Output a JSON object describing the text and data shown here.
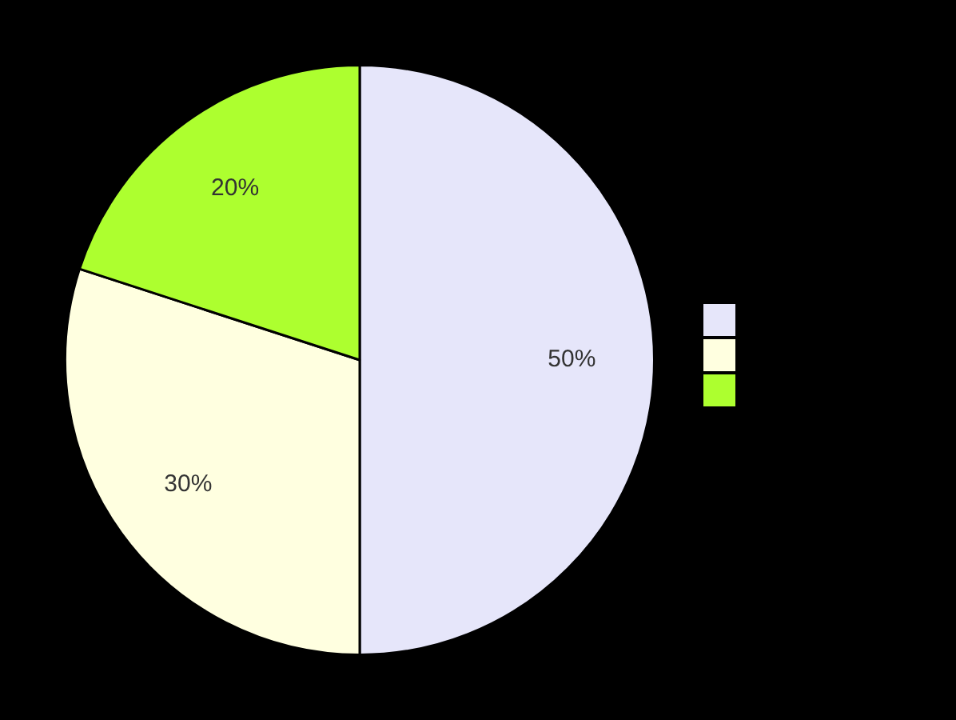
{
  "chart_data": {
    "type": "pie",
    "categories": [
      null,
      null,
      null
    ],
    "values": [
      50,
      30,
      20
    ],
    "colors": [
      "#e6e6fa",
      "#ffffe0",
      "#adff2f"
    ],
    "value_labels": [
      "50%",
      "30%",
      "20%"
    ]
  }
}
